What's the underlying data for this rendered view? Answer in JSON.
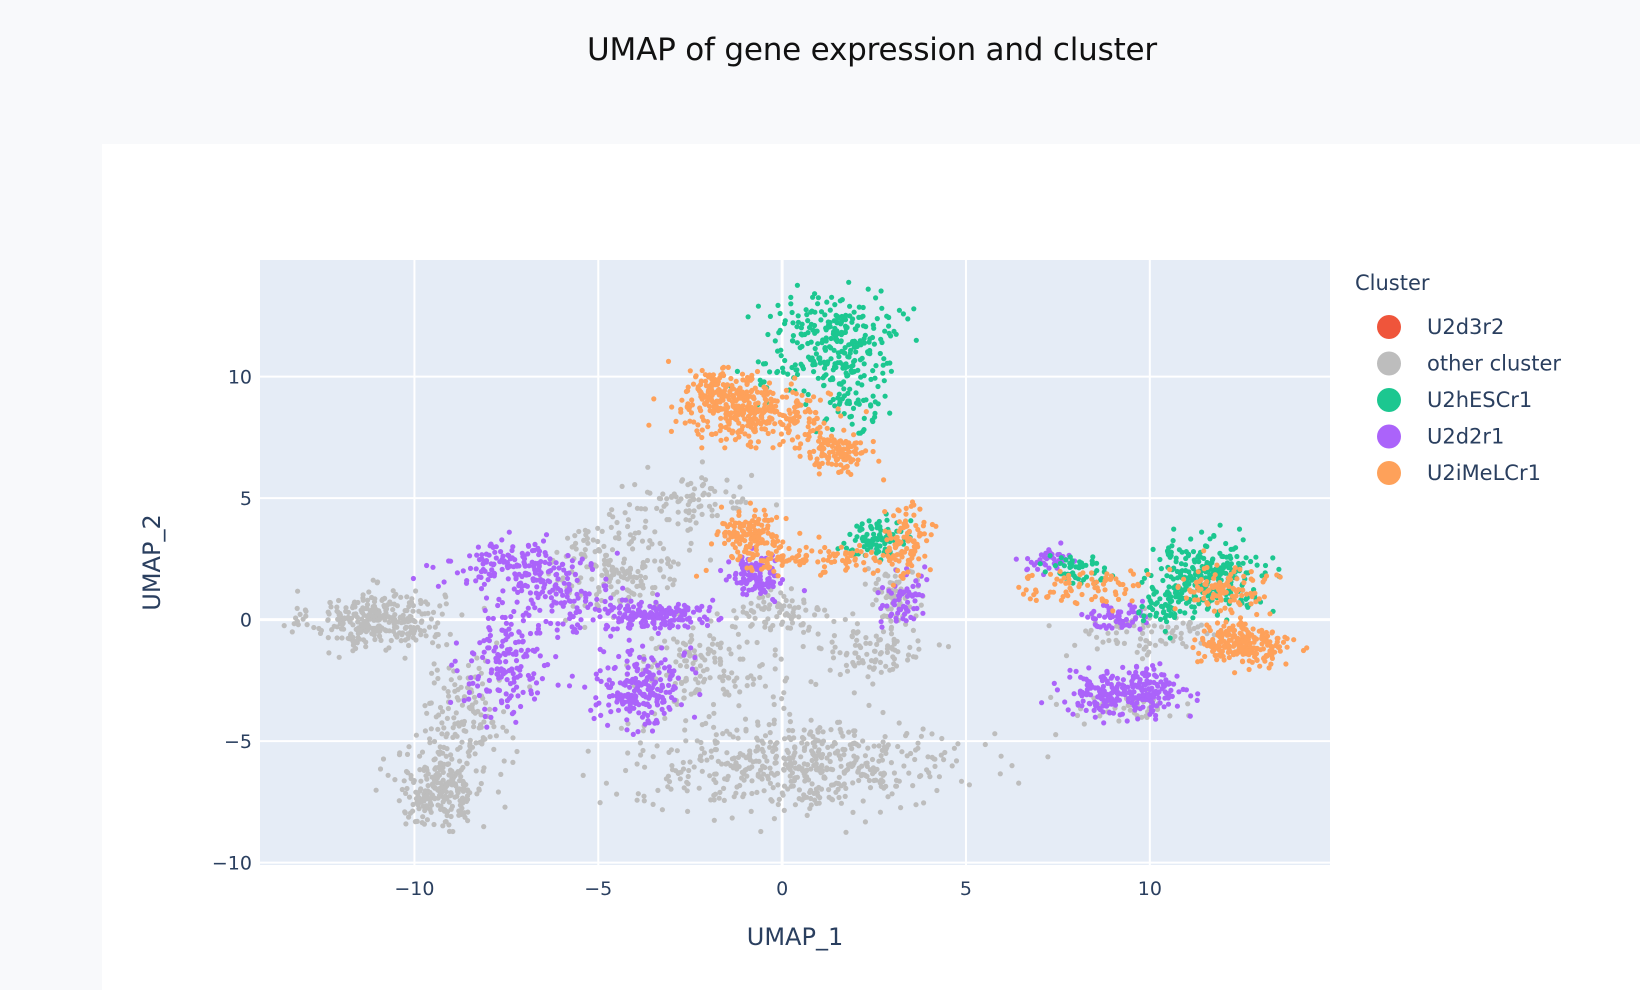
{
  "page": {
    "title": "UMAP of gene expression and cluster"
  },
  "colors": {
    "plot_background": "#e5ecf6",
    "grid": "#ffffff",
    "text": "#2a3f5f"
  },
  "chart_data": {
    "type": "scatter",
    "title": "UMAP of gene expression and cluster",
    "xlabel": "UMAP_1",
    "ylabel": "UMAP_2",
    "xlim": [
      -14.2,
      14.9
    ],
    "ylim": [
      -10.1,
      14.8
    ],
    "xticks": [
      -10,
      -5,
      0,
      5,
      10
    ],
    "xtick_labels": [
      "−10",
      "−5",
      "0",
      "5",
      "10"
    ],
    "yticks": [
      -10,
      -5,
      0,
      5,
      10
    ],
    "ytick_labels": [
      "−10",
      "−5",
      "0",
      "5",
      "10"
    ],
    "grid": true,
    "legend": {
      "title": "Cluster",
      "position": "right",
      "entries": [
        "U2d3r2",
        "other cluster",
        "U2hESCr1",
        "U2d2r1",
        "U2iMeLCr1"
      ]
    },
    "series": [
      {
        "name": "other cluster",
        "color": "#bdbdbd",
        "blobs": [
          {
            "cx": -11.0,
            "cy": 0.0,
            "sx": 0.9,
            "sy": 0.6,
            "n": 320
          },
          {
            "cx": -9.3,
            "cy": -7.0,
            "sx": 0.6,
            "sy": 0.8,
            "n": 230
          },
          {
            "cx": -8.6,
            "cy": -4.0,
            "sx": 0.6,
            "sy": 1.2,
            "n": 140
          },
          {
            "cx": -4.5,
            "cy": 2.2,
            "sx": 0.9,
            "sy": 0.9,
            "n": 180
          },
          {
            "cx": -2.5,
            "cy": 4.8,
            "sx": 0.9,
            "sy": 0.6,
            "n": 90
          },
          {
            "cx": -2.0,
            "cy": -2.0,
            "sx": 1.0,
            "sy": 1.0,
            "n": 160
          },
          {
            "cx": 0.5,
            "cy": -6.0,
            "sx": 2.2,
            "sy": 0.9,
            "n": 520
          },
          {
            "cx": 2.4,
            "cy": -1.3,
            "sx": 0.8,
            "sy": 0.6,
            "n": 90
          },
          {
            "cx": 3.0,
            "cy": 1.0,
            "sx": 0.4,
            "sy": 1.0,
            "n": 70
          },
          {
            "cx": 0.0,
            "cy": 0.2,
            "sx": 0.6,
            "sy": 0.5,
            "n": 70
          },
          {
            "cx": 10.0,
            "cy": -0.6,
            "sx": 1.2,
            "sy": 0.5,
            "n": 80
          },
          {
            "cx": 9.2,
            "cy": -3.6,
            "sx": 0.7,
            "sy": 0.3,
            "n": 50
          }
        ]
      },
      {
        "name": "U2d2r1",
        "color": "#ab63fa",
        "blobs": [
          {
            "cx": -7.3,
            "cy": 2.2,
            "sx": 0.9,
            "sy": 0.5,
            "n": 150
          },
          {
            "cx": -7.5,
            "cy": -2.0,
            "sx": 0.6,
            "sy": 1.1,
            "n": 150
          },
          {
            "cx": -6.0,
            "cy": 0.8,
            "sx": 0.8,
            "sy": 0.7,
            "n": 130
          },
          {
            "cx": -3.8,
            "cy": -2.8,
            "sx": 0.6,
            "sy": 0.8,
            "n": 220
          },
          {
            "cx": -3.5,
            "cy": 0.2,
            "sx": 0.7,
            "sy": 0.3,
            "n": 160
          },
          {
            "cx": -0.7,
            "cy": 1.8,
            "sx": 0.35,
            "sy": 0.45,
            "n": 110
          },
          {
            "cx": 3.3,
            "cy": 0.8,
            "sx": 0.3,
            "sy": 0.6,
            "n": 60
          },
          {
            "cx": 7.2,
            "cy": 2.4,
            "sx": 0.3,
            "sy": 0.25,
            "n": 40
          },
          {
            "cx": 9.0,
            "cy": 0.1,
            "sx": 0.4,
            "sy": 0.3,
            "n": 60
          },
          {
            "cx": 9.4,
            "cy": -3.0,
            "sx": 0.8,
            "sy": 0.45,
            "n": 260
          }
        ]
      },
      {
        "name": "U2hESCr1",
        "color": "#1cc790",
        "blobs": [
          {
            "cx": 1.6,
            "cy": 11.8,
            "sx": 0.9,
            "sy": 0.8,
            "n": 220
          },
          {
            "cx": 1.8,
            "cy": 9.5,
            "sx": 0.5,
            "sy": 0.9,
            "n": 90
          },
          {
            "cx": 0.2,
            "cy": 10.2,
            "sx": 0.7,
            "sy": 0.5,
            "n": 40
          },
          {
            "cx": 2.6,
            "cy": 3.4,
            "sx": 0.4,
            "sy": 0.4,
            "n": 90
          },
          {
            "cx": 8.1,
            "cy": 2.0,
            "sx": 0.5,
            "sy": 0.3,
            "n": 50
          },
          {
            "cx": 11.6,
            "cy": 1.8,
            "sx": 0.75,
            "sy": 0.7,
            "n": 280
          },
          {
            "cx": 10.4,
            "cy": 0.6,
            "sx": 0.4,
            "sy": 0.4,
            "n": 60
          }
        ]
      },
      {
        "name": "U2iMeLCr1",
        "color": "#fea15a",
        "blobs": [
          {
            "cx": -0.8,
            "cy": 8.5,
            "sx": 1.0,
            "sy": 0.6,
            "n": 300
          },
          {
            "cx": -1.6,
            "cy": 9.4,
            "sx": 0.5,
            "sy": 0.5,
            "n": 120
          },
          {
            "cx": 1.5,
            "cy": 6.8,
            "sx": 0.4,
            "sy": 0.4,
            "n": 120
          },
          {
            "cx": -0.8,
            "cy": 3.5,
            "sx": 0.45,
            "sy": 0.45,
            "n": 140
          },
          {
            "cx": 0.8,
            "cy": 2.5,
            "sx": 1.2,
            "sy": 0.3,
            "n": 110
          },
          {
            "cx": 3.4,
            "cy": 3.2,
            "sx": 0.3,
            "sy": 0.7,
            "n": 100
          },
          {
            "cx": 8.2,
            "cy": 1.3,
            "sx": 0.9,
            "sy": 0.4,
            "n": 80
          },
          {
            "cx": 12.5,
            "cy": -1.0,
            "sx": 0.6,
            "sy": 0.4,
            "n": 220
          },
          {
            "cx": 12.0,
            "cy": 1.2,
            "sx": 0.6,
            "sy": 0.6,
            "n": 110
          }
        ]
      },
      {
        "name": "U2d3r2",
        "color": "#ef553b",
        "blobs": []
      }
    ]
  }
}
